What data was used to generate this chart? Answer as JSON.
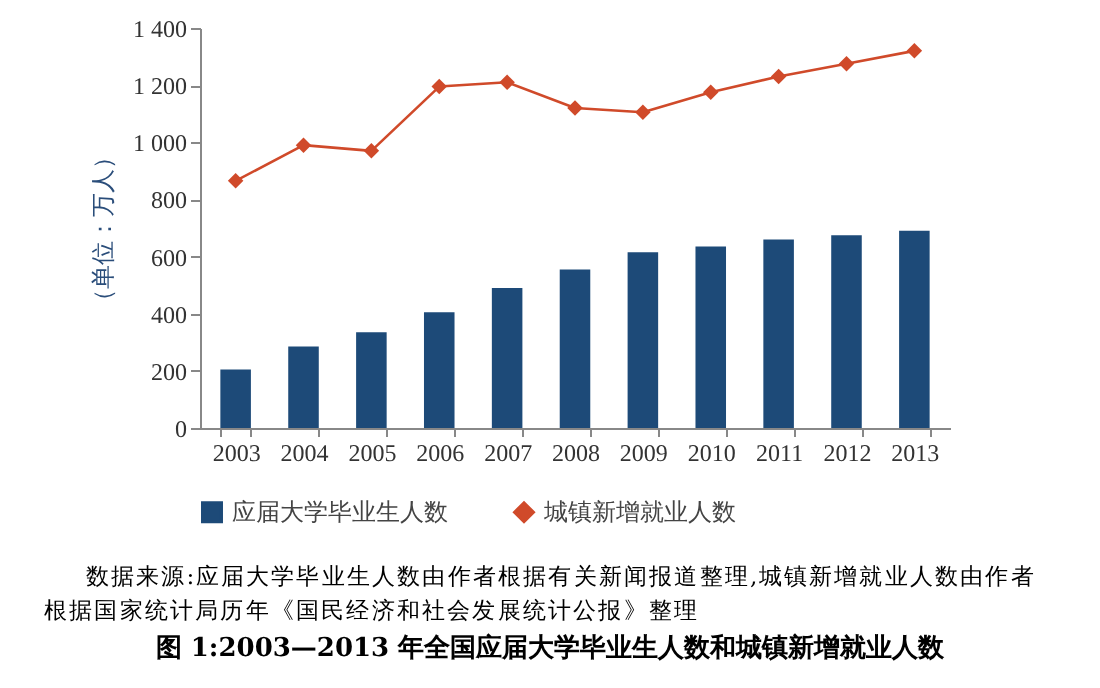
{
  "chart_data": {
    "type": "bar",
    "title": "图 1:2003—2013 年全国应届大学毕业生人数和城镇新增就业人数",
    "ylabel": "（单位：万人）",
    "annotations": [
      "数据来源:应届大学毕业生人数由作者根据有关新闻报道整理,城镇新增就业人数由作者根据国家统计局历年《国民经济和社会发展统计公报》整理"
    ],
    "categories": [
      "2003",
      "2004",
      "2005",
      "2006",
      "2007",
      "2008",
      "2009",
      "2010",
      "2011",
      "2012",
      "2013"
    ],
    "series": [
      {
        "name": "应届大学毕业生人数",
        "type": "bar",
        "color": "#1d4a78",
        "values": [
          205,
          285,
          335,
          405,
          490,
          555,
          615,
          635,
          660,
          675,
          690
        ]
      },
      {
        "name": "城镇新增就业人数",
        "type": "line",
        "color": "#d04a2a",
        "marker": "diamond",
        "values": [
          865,
          990,
          970,
          1195,
          1210,
          1120,
          1105,
          1175,
          1230,
          1275,
          1320
        ]
      }
    ],
    "ylim": [
      0,
      1400
    ],
    "yticks": [
      0,
      200,
      400,
      600,
      800,
      {
        "value": 1000,
        "label": "1 000"
      },
      {
        "value": 1200,
        "label": "1 200"
      },
      {
        "value": 1400,
        "label": "1 400"
      }
    ],
    "grid": false,
    "legend": "bottom"
  }
}
